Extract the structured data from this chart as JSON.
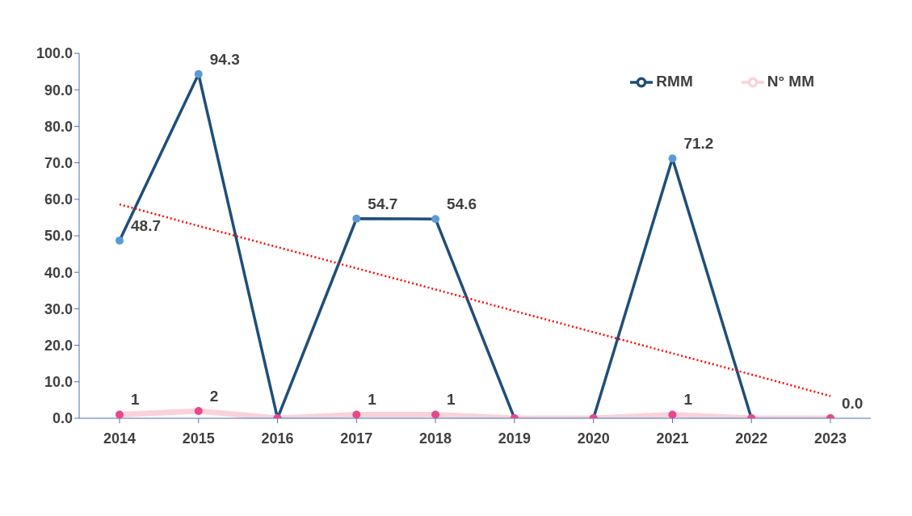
{
  "chart_data": {
    "type": "line",
    "categories": [
      "2014",
      "2015",
      "2016",
      "2017",
      "2018",
      "2019",
      "2020",
      "2021",
      "2022",
      "2023"
    ],
    "series": [
      {
        "name": "RMM",
        "color": "#1f4e79",
        "values": [
          48.7,
          94.3,
          0,
          54.7,
          54.6,
          0,
          0,
          71.2,
          0,
          0
        ],
        "value_labels": [
          "48.7",
          "94.3",
          null,
          "54.7",
          "54.6",
          null,
          null,
          "71.2",
          null,
          "0.0"
        ]
      },
      {
        "name": "N° MM",
        "color": "#f9d3d9",
        "values": [
          1,
          2,
          0,
          1,
          1,
          0,
          0,
          1,
          0,
          0
        ],
        "value_labels": [
          "1",
          "2",
          null,
          "1",
          "1",
          null,
          null,
          "1",
          null,
          null
        ]
      },
      {
        "type": "line",
        "color": "#ff0000",
        "line_style": "dotted",
        "marker": "none",
        "values": [
          58.6,
          52.7,
          46.9,
          41.1,
          35.3,
          29.4,
          23.6,
          17.8,
          12.0,
          6.1
        ]
      }
    ],
    "ylim": [
      0,
      100
    ],
    "yticks": [
      {
        "value": 0,
        "label": "0.0"
      },
      {
        "value": 10,
        "label": "10.0"
      },
      {
        "value": 20,
        "label": "20.0"
      },
      {
        "value": 30,
        "label": "30.0"
      },
      {
        "value": 40,
        "label": "40.0"
      },
      {
        "value": 50,
        "label": "50.0"
      },
      {
        "value": 60,
        "label": "60.0"
      },
      {
        "value": 70,
        "label": "70.0"
      },
      {
        "value": 80,
        "label": "80.0"
      },
      {
        "value": 90,
        "label": "90.0"
      },
      {
        "value": 100,
        "label": "100.0"
      }
    ],
    "grid": false,
    "legend": "top right",
    "marker": "circle",
    "line_style": "solid"
  }
}
